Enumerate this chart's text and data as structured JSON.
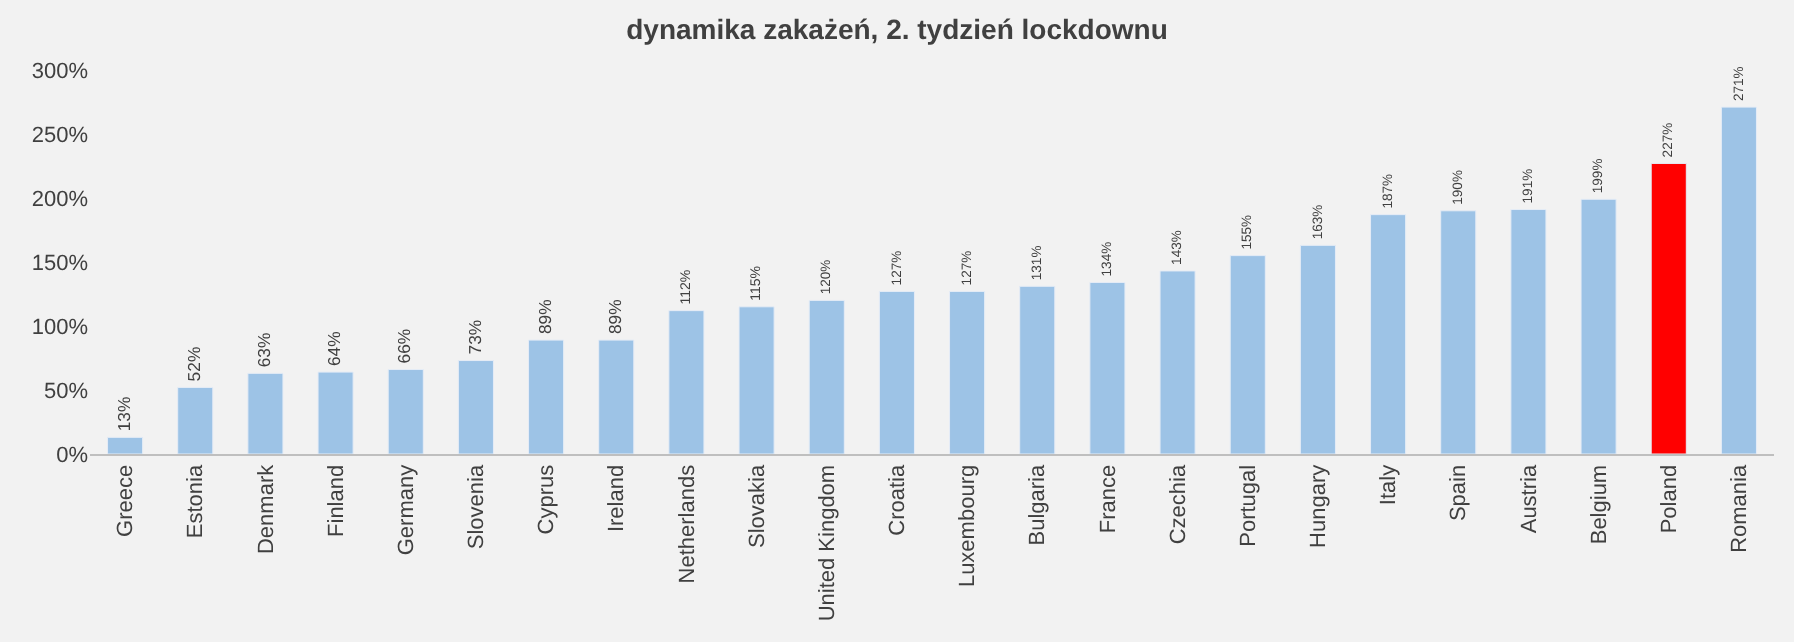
{
  "chart_data": {
    "type": "bar",
    "title": "dynamika zakażeń, 2. tydzień lockdownu",
    "categories": [
      "Greece",
      "Estonia",
      "Denmark",
      "Finland",
      "Germany",
      "Slovenia",
      "Cyprus",
      "Ireland",
      "Netherlands",
      "Slovakia",
      "United Kingdom",
      "Croatia",
      "Luxembourg",
      "Bulgaria",
      "France",
      "Czechia",
      "Portugal",
      "Hungary",
      "Italy",
      "Spain",
      "Austria",
      "Belgium",
      "Poland",
      "Romania"
    ],
    "values": [
      13,
      52,
      63,
      64,
      66,
      73,
      89,
      89,
      112,
      115,
      120,
      127,
      127,
      131,
      134,
      143,
      155,
      163,
      187,
      190,
      191,
      199,
      227,
      271
    ],
    "value_labels": [
      "13%",
      "52%",
      "63%",
      "64%",
      "66%",
      "73%",
      "89%",
      "89%",
      "112%",
      "115%",
      "120%",
      "127%",
      "127%",
      "131%",
      "134%",
      "143%",
      "155%",
      "163%",
      "187%",
      "190%",
      "191%",
      "199%",
      "227%",
      "271%"
    ],
    "colors": [
      "#9dc3e6",
      "#9dc3e6",
      "#9dc3e6",
      "#9dc3e6",
      "#9dc3e6",
      "#9dc3e6",
      "#9dc3e6",
      "#9dc3e6",
      "#9dc3e6",
      "#9dc3e6",
      "#9dc3e6",
      "#9dc3e6",
      "#9dc3e6",
      "#9dc3e6",
      "#9dc3e6",
      "#9dc3e6",
      "#9dc3e6",
      "#9dc3e6",
      "#9dc3e6",
      "#9dc3e6",
      "#9dc3e6",
      "#9dc3e6",
      "#ff0000",
      "#9dc3e6"
    ],
    "ylim": [
      0,
      300
    ],
    "yticks": [
      {
        "value": 0,
        "label": "0%"
      },
      {
        "value": 50,
        "label": "50%"
      },
      {
        "value": 100,
        "label": "100%"
      },
      {
        "value": 150,
        "label": "150%"
      },
      {
        "value": 200,
        "label": "200%"
      },
      {
        "value": 250,
        "label": "250%"
      },
      {
        "value": 300,
        "label": "300%"
      }
    ],
    "grid": false,
    "legend": false
  }
}
